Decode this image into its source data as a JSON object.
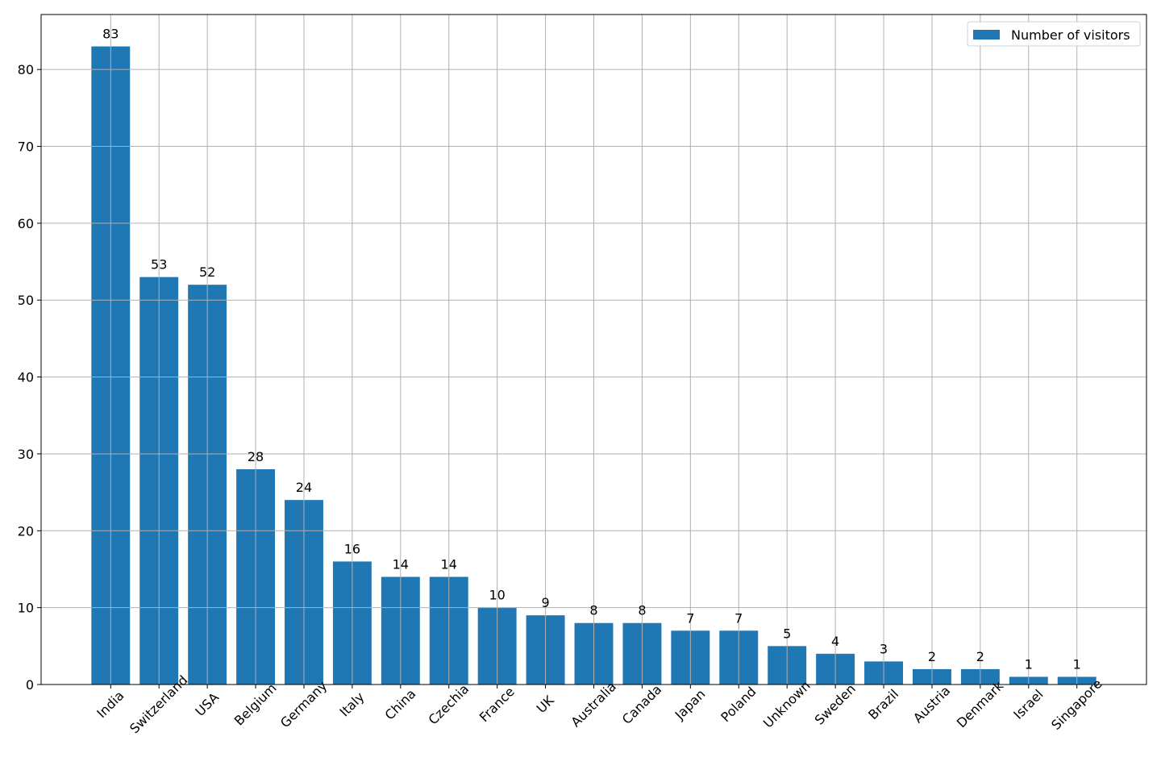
{
  "chart_data": {
    "type": "bar",
    "categories": [
      "India",
      "Switzerland",
      "USA",
      "Belgium",
      "Germany",
      "Italy",
      "China",
      "Czechia",
      "France",
      "UK",
      "Australia",
      "Canada",
      "Japan",
      "Poland",
      "Unknown",
      "Sweden",
      "Brazil",
      "Austria",
      "Denmark",
      "Israel",
      "Singapore"
    ],
    "series": [
      {
        "name": "Number of visitors",
        "color": "#1f77b4",
        "values": [
          83,
          53,
          52,
          28,
          24,
          16,
          14,
          14,
          10,
          9,
          8,
          8,
          7,
          7,
          5,
          4,
          3,
          2,
          2,
          1,
          1
        ]
      }
    ],
    "ylim": [
      0,
      87.15
    ],
    "yticks": [
      0,
      10,
      20,
      30,
      40,
      50,
      60,
      70,
      80
    ],
    "grid": true,
    "legend": "upper right"
  }
}
